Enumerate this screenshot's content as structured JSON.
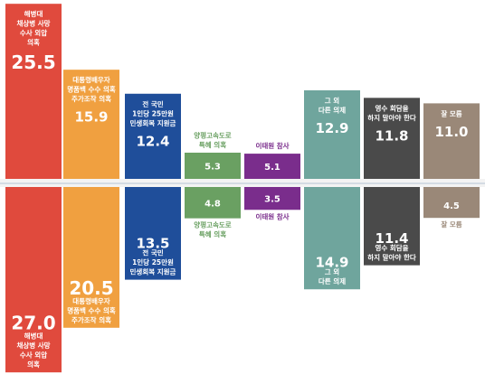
{
  "chart_data": {
    "type": "bar",
    "layout": "mirrored",
    "series": [
      {
        "position": "top",
        "values": [
          25.5,
          15.9,
          12.4,
          5.3,
          5.1,
          12.9,
          11.8,
          11.0
        ],
        "labels": [
          [
            "해병대",
            "채상병 사망",
            "수사 외압",
            "의혹"
          ],
          [
            "대통령배우자",
            "명품백 수수 의혹",
            "주가조작 의혹"
          ],
          [
            "전 국민",
            "1인당 25만원",
            "민생회복 지원금"
          ],
          [
            "양평고속도로",
            "특혜 의혹"
          ],
          [
            "이태원 참사"
          ],
          [
            "그 외",
            "다른 의제"
          ],
          [
            "영수 회담을",
            "하지 말아야 한다"
          ],
          [
            "잘 모름"
          ]
        ],
        "value_text": [
          "25.5",
          "15.9",
          "12.4",
          "5.3",
          "5.1",
          "12.9",
          "11.8",
          "11.0"
        ]
      },
      {
        "position": "bottom",
        "values": [
          27.0,
          20.5,
          13.5,
          4.8,
          3.5,
          14.9,
          11.4,
          4.5
        ],
        "labels": [
          [
            "해병대",
            "채상병 사망",
            "수사 외압",
            "의혹"
          ],
          [
            "대통령배우자",
            "명품백 수수 의혹",
            "주가조작 의혹"
          ],
          [
            "전 국민",
            "1인당 25만원",
            "민생회복 지원금"
          ],
          [
            "양평고속도로",
            "특혜 의혹"
          ],
          [
            "이태원 참사"
          ],
          [
            "그 외",
            "다른 의제"
          ],
          [
            "영수 회담을",
            "하지 말아야 한다"
          ],
          [
            "잘 모름"
          ]
        ],
        "value_text": [
          "27.0",
          "20.5",
          "13.5",
          "4.8",
          "3.5",
          "14.9",
          "11.4",
          "4.5"
        ]
      }
    ],
    "colors": [
      "#e04a3d",
      "#f0a040",
      "#1f4e9a",
      "#6aa062",
      "#7a2d8c",
      "#6fa59d",
      "#4a4a4a",
      "#9a8878"
    ],
    "grid": false,
    "legend": "none"
  }
}
